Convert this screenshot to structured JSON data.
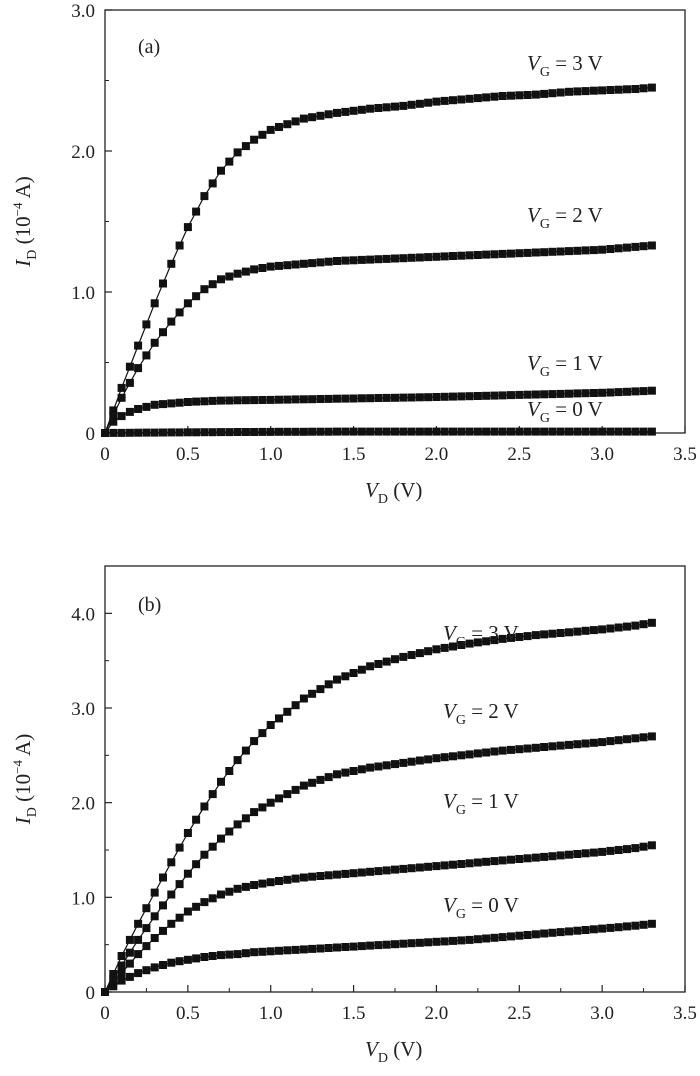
{
  "chart_data": [
    {
      "type": "scatter",
      "panel_label": "(a)",
      "xlabel": {
        "symbol": "V",
        "sub": "D",
        "unit": "(V)"
      },
      "ylabel": {
        "symbol": "I",
        "sub": "D",
        "unit_pre": "(10",
        "unit_sup": "−4",
        "unit_post": " A)"
      },
      "xlim": [
        0,
        3.5
      ],
      "ylim": [
        0,
        3.0
      ],
      "x_ticks": [
        0,
        0.5,
        1.0,
        1.5,
        2.0,
        2.5,
        3.0,
        3.5
      ],
      "x_tick_labels": [
        "0",
        "0.5",
        "1.0",
        "1.5",
        "2.0",
        "2.5",
        "3.0",
        "3.5"
      ],
      "y_ticks": [
        0,
        1.0,
        2.0,
        3.0
      ],
      "y_tick_labels": [
        "0",
        "1.0",
        "2.0",
        "3.0"
      ],
      "grid": false,
      "series": [
        {
          "name": "VG = 3 V",
          "label_symbol": "V",
          "label_sub": "G",
          "label_rest": " = 3 V",
          "x": [
            0.0,
            0.1,
            0.2,
            0.3,
            0.4,
            0.5,
            0.6,
            0.7,
            0.8,
            0.9,
            1.0,
            1.2,
            1.4,
            1.6,
            1.8,
            2.0,
            2.2,
            2.4,
            2.6,
            2.8,
            3.0,
            3.2,
            3.3
          ],
          "y": [
            0.0,
            0.32,
            0.62,
            0.92,
            1.2,
            1.46,
            1.68,
            1.86,
            1.99,
            2.08,
            2.15,
            2.23,
            2.27,
            2.3,
            2.32,
            2.35,
            2.37,
            2.39,
            2.4,
            2.42,
            2.43,
            2.44,
            2.45
          ]
        },
        {
          "name": "VG = 2 V",
          "label_symbol": "V",
          "label_sub": "G",
          "label_rest": " = 2 V",
          "x": [
            0.0,
            0.1,
            0.2,
            0.3,
            0.4,
            0.5,
            0.6,
            0.7,
            0.8,
            0.9,
            1.0,
            1.2,
            1.4,
            1.6,
            1.8,
            2.0,
            2.2,
            2.4,
            2.6,
            2.8,
            3.0,
            3.2,
            3.3
          ],
          "y": [
            0.0,
            0.25,
            0.46,
            0.64,
            0.79,
            0.92,
            1.02,
            1.09,
            1.13,
            1.16,
            1.18,
            1.2,
            1.22,
            1.23,
            1.24,
            1.25,
            1.26,
            1.27,
            1.28,
            1.29,
            1.3,
            1.32,
            1.33
          ]
        },
        {
          "name": "VG = 1 V",
          "label_symbol": "V",
          "label_sub": "G",
          "label_rest": " = 1 V",
          "x": [
            0.0,
            0.05,
            0.1,
            0.15,
            0.2,
            0.3,
            0.4,
            0.5,
            0.7,
            1.0,
            1.5,
            2.0,
            2.5,
            3.0,
            3.3
          ],
          "y": [
            0.0,
            0.08,
            0.12,
            0.15,
            0.17,
            0.2,
            0.21,
            0.22,
            0.23,
            0.235,
            0.245,
            0.255,
            0.27,
            0.285,
            0.3
          ]
        },
        {
          "name": "VG = 0 V",
          "label_symbol": "V",
          "label_sub": "G",
          "label_rest": " = 0 V",
          "x": [
            0.0,
            0.5,
            1.0,
            1.5,
            2.0,
            2.5,
            3.0,
            3.3
          ],
          "y": [
            0.0,
            0.005,
            0.008,
            0.01,
            0.01,
            0.01,
            0.01,
            0.01
          ]
        }
      ]
    },
    {
      "type": "scatter",
      "panel_label": "(b)",
      "xlabel": {
        "symbol": "V",
        "sub": "D",
        "unit": "(V)"
      },
      "ylabel": {
        "symbol": "I",
        "sub": "D",
        "unit_pre": "(10",
        "unit_sup": "−4",
        "unit_post": " A)"
      },
      "xlim": [
        0,
        3.5
      ],
      "ylim": [
        0,
        4.5
      ],
      "x_ticks": [
        0,
        0.5,
        1.0,
        1.5,
        2.0,
        2.5,
        3.0,
        3.5
      ],
      "x_tick_labels": [
        "0",
        "0.5",
        "1.0",
        "1.5",
        "2.0",
        "2.5",
        "3.0",
        "3.5"
      ],
      "y_ticks": [
        0,
        1.0,
        2.0,
        3.0,
        4.0
      ],
      "y_tick_labels": [
        "0",
        "1.0",
        "2.0",
        "3.0",
        "4.0"
      ],
      "grid": false,
      "series": [
        {
          "name": "VG = 3 V",
          "label_symbol": "V",
          "label_sub": "G",
          "label_rest": " = 3 V",
          "x": [
            0.0,
            0.1,
            0.2,
            0.3,
            0.4,
            0.5,
            0.6,
            0.7,
            0.8,
            0.9,
            1.0,
            1.2,
            1.4,
            1.6,
            1.8,
            2.0,
            2.2,
            2.4,
            2.6,
            2.8,
            3.0,
            3.2,
            3.3
          ],
          "y": [
            0.0,
            0.38,
            0.72,
            1.05,
            1.37,
            1.68,
            1.96,
            2.22,
            2.45,
            2.65,
            2.82,
            3.1,
            3.3,
            3.44,
            3.54,
            3.62,
            3.68,
            3.73,
            3.77,
            3.8,
            3.83,
            3.87,
            3.9
          ]
        },
        {
          "name": "VG = 2 V",
          "label_symbol": "V",
          "label_sub": "G",
          "label_rest": " = 2 V",
          "x": [
            0.0,
            0.1,
            0.2,
            0.3,
            0.4,
            0.5,
            0.6,
            0.7,
            0.8,
            0.9,
            1.0,
            1.2,
            1.4,
            1.6,
            1.8,
            2.0,
            2.2,
            2.4,
            2.6,
            2.8,
            3.0,
            3.2,
            3.3
          ],
          "y": [
            0.0,
            0.28,
            0.55,
            0.8,
            1.03,
            1.25,
            1.45,
            1.62,
            1.77,
            1.9,
            2.0,
            2.18,
            2.3,
            2.37,
            2.42,
            2.47,
            2.51,
            2.55,
            2.58,
            2.61,
            2.64,
            2.68,
            2.7
          ]
        },
        {
          "name": "VG = 1 V",
          "label_symbol": "V",
          "label_sub": "G",
          "label_rest": " = 1 V",
          "x": [
            0.0,
            0.1,
            0.2,
            0.3,
            0.4,
            0.5,
            0.6,
            0.7,
            0.8,
            0.9,
            1.0,
            1.2,
            1.4,
            1.6,
            1.8,
            2.0,
            2.2,
            2.4,
            2.6,
            2.8,
            3.0,
            3.2,
            3.3
          ],
          "y": [
            0.0,
            0.2,
            0.4,
            0.57,
            0.72,
            0.85,
            0.95,
            1.03,
            1.09,
            1.13,
            1.16,
            1.21,
            1.24,
            1.27,
            1.3,
            1.33,
            1.36,
            1.39,
            1.42,
            1.45,
            1.48,
            1.52,
            1.55
          ]
        },
        {
          "name": "VG = 0 V",
          "label_symbol": "V",
          "label_sub": "G",
          "label_rest": " = 0 V",
          "x": [
            0.0,
            0.1,
            0.2,
            0.3,
            0.4,
            0.5,
            0.6,
            0.7,
            0.8,
            0.9,
            1.0,
            1.2,
            1.4,
            1.6,
            1.8,
            2.0,
            2.2,
            2.4,
            2.6,
            2.8,
            3.0,
            3.2,
            3.3
          ],
          "y": [
            0.0,
            0.12,
            0.2,
            0.26,
            0.31,
            0.34,
            0.37,
            0.39,
            0.4,
            0.42,
            0.43,
            0.45,
            0.47,
            0.49,
            0.51,
            0.53,
            0.55,
            0.58,
            0.61,
            0.64,
            0.67,
            0.7,
            0.72
          ]
        }
      ]
    }
  ]
}
